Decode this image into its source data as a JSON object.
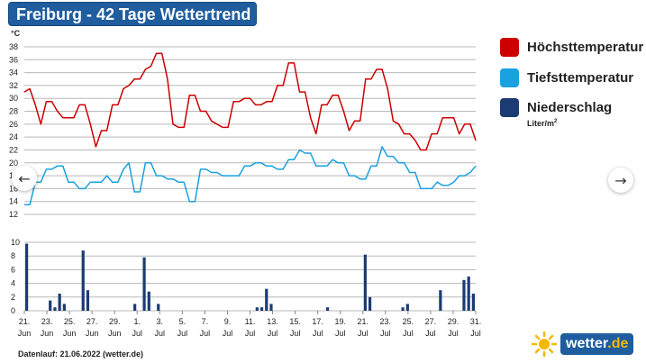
{
  "title": "Freiburg - 42 Tage Wettertrend",
  "legend": {
    "max_label": "Höchsttemperatur",
    "min_label": "Tiefsttemperatur",
    "precip_label": "Niederschlag",
    "precip_unit_base": "Liter/m",
    "precip_unit_exp": "2"
  },
  "nav": {
    "prev_icon": "←",
    "next_icon": "→"
  },
  "footer": {
    "datenlauf": "Datenlauf: 21.06.2022 (wetter.de)"
  },
  "brand": {
    "name": "wetter",
    "suffix": ".de"
  },
  "colors": {
    "max": "#cc0000",
    "min": "#1aa1e0",
    "precip": "#1c3b73",
    "title_bg": "#1f5d9e",
    "sun": "#f5b800"
  },
  "chart_data": {
    "type": "line",
    "x_ticks": [
      {
        "day": "21.",
        "month": "Jun"
      },
      {
        "day": "23.",
        "month": "Jun"
      },
      {
        "day": "25.",
        "month": "Jun"
      },
      {
        "day": "27.",
        "month": "Jun"
      },
      {
        "day": "29.",
        "month": "Jun"
      },
      {
        "day": "1.",
        "month": "Jul"
      },
      {
        "day": "3.",
        "month": "Jul"
      },
      {
        "day": "5.",
        "month": "Jul"
      },
      {
        "day": "7.",
        "month": "Jul"
      },
      {
        "day": "9.",
        "month": "Jul"
      },
      {
        "day": "11.",
        "month": "Jul"
      },
      {
        "day": "13.",
        "month": "Jul"
      },
      {
        "day": "15.",
        "month": "Jul"
      },
      {
        "day": "17.",
        "month": "Jul"
      },
      {
        "day": "19.",
        "month": "Jul"
      },
      {
        "day": "21.",
        "month": "Jul"
      },
      {
        "day": "23.",
        "month": "Jul"
      },
      {
        "day": "25.",
        "month": "Jul"
      },
      {
        "day": "27.",
        "month": "Jul"
      },
      {
        "day": "29.",
        "month": "Jul"
      },
      {
        "day": "31.",
        "month": "Jul"
      }
    ],
    "temp_axis": {
      "unit": "°C",
      "min": 12,
      "max": 38,
      "ticks": [
        38,
        36,
        34,
        32,
        30,
        28,
        26,
        24,
        22,
        20,
        18,
        16,
        14,
        12
      ]
    },
    "precip_axis": {
      "min": 0,
      "max": 10,
      "ticks": [
        10,
        8,
        6,
        4,
        2,
        0
      ]
    },
    "series": [
      {
        "name": "Höchsttemperatur",
        "values": [
          31,
          31.5,
          29,
          26,
          29.5,
          29.5,
          28,
          27,
          27,
          27,
          29,
          29,
          26,
          22.5,
          25,
          25,
          29,
          29,
          31.5,
          32,
          33,
          33,
          34.5,
          35,
          37,
          37,
          33,
          26,
          25.5,
          25.5,
          30.5,
          30.5,
          28,
          28,
          26.5,
          26,
          25.5,
          25.5,
          29.5,
          29.5,
          30,
          30,
          29,
          29,
          29.5,
          29.5,
          32,
          32,
          35.5,
          35.5,
          31,
          31,
          27,
          24.5,
          29,
          29,
          30.5,
          30.5,
          28,
          25,
          26.5,
          26.5,
          33,
          33,
          34.5,
          34.5,
          31.5,
          26.5,
          26,
          24.5,
          24.5,
          23.5,
          22,
          22,
          24.5,
          24.5,
          27,
          27,
          27,
          24.5,
          26,
          26,
          23.5
        ]
      },
      {
        "name": "Tiefsttemperatur",
        "values": [
          13.5,
          13.5,
          17,
          17,
          19,
          19,
          19.5,
          19.5,
          17,
          17,
          16,
          16,
          17,
          17,
          17,
          18,
          17,
          17,
          19,
          20,
          15.5,
          15.5,
          20,
          20,
          18,
          18,
          17.5,
          17.5,
          17,
          17,
          14,
          14,
          19,
          19,
          18.5,
          18.5,
          18,
          18,
          18,
          18,
          19.5,
          19.5,
          20,
          20,
          19.5,
          19.5,
          19,
          19,
          20.5,
          20.5,
          22,
          21.5,
          21.5,
          19.5,
          19.5,
          19.5,
          20.5,
          20,
          20,
          18,
          18,
          17.5,
          17.5,
          19.5,
          19.5,
          22.5,
          21,
          21,
          20,
          20,
          18.5,
          18.5,
          16,
          16,
          16,
          17,
          16.5,
          16.5,
          17,
          18,
          18,
          18.5,
          19.5
        ]
      },
      {
        "name": "Niederschlag",
        "values": [
          9.8,
          0,
          0,
          0,
          0,
          1.5,
          0.5,
          2.5,
          1,
          0,
          0,
          0,
          8.8,
          3,
          0,
          0,
          0,
          0,
          0,
          0,
          0,
          0,
          0,
          1,
          0,
          7.8,
          2.8,
          0,
          1,
          0,
          0,
          0,
          0,
          0,
          0,
          0,
          0,
          0,
          0,
          0,
          0,
          0,
          0,
          0,
          0,
          0,
          0,
          0,
          0,
          0.5,
          0.5,
          3.2,
          1,
          0,
          0,
          0,
          0,
          0,
          0,
          0,
          0,
          0,
          0,
          0,
          0.5,
          0,
          0,
          0,
          0,
          0,
          0,
          0,
          8.2,
          2,
          0,
          0,
          0,
          0,
          0,
          0,
          0.5,
          1,
          0,
          0,
          0,
          0,
          0,
          0,
          3,
          0,
          0,
          0,
          0,
          4.5,
          5,
          2.5
        ]
      }
    ]
  }
}
